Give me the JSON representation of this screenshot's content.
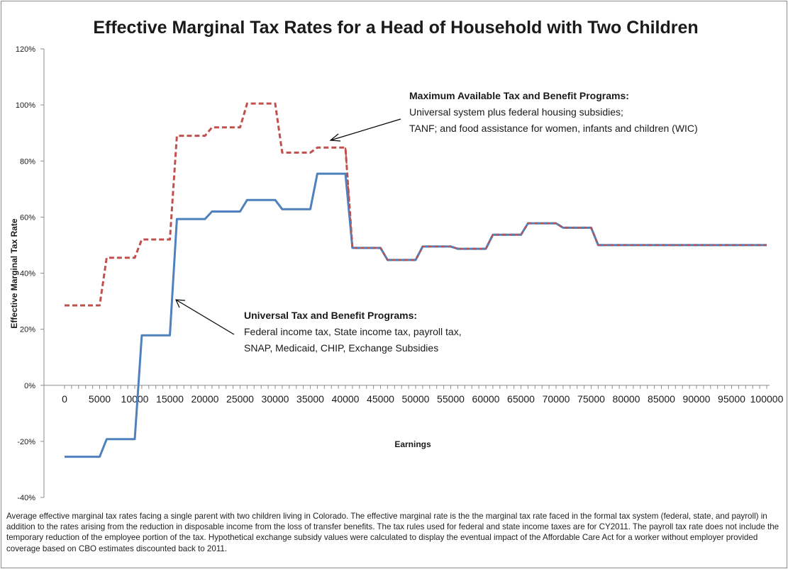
{
  "chart_data": {
    "type": "line",
    "title": "Effective Marginal Tax Rates for a Head of Household with Two Children",
    "xlabel": "Earnings",
    "ylabel": "Effective Marginal Tax Rate",
    "xlim": [
      0,
      100000
    ],
    "ylim": [
      -0.4,
      1.2
    ],
    "x_ticks": [
      "0",
      "5000",
      "10000",
      "15000",
      "20000",
      "25000",
      "30000",
      "35000",
      "40000",
      "45000",
      "50000",
      "55000",
      "60000",
      "65000",
      "70000",
      "75000",
      "80000",
      "85000",
      "90000",
      "95000",
      "100000"
    ],
    "y_ticks": [
      "-40%",
      "-20%",
      "0%",
      "20%",
      "40%",
      "60%",
      "80%",
      "100%",
      "120%"
    ],
    "y_tick_values": [
      -0.4,
      -0.2,
      0,
      0.2,
      0.4,
      0.6,
      0.8,
      1.0,
      1.2
    ],
    "grid": false,
    "series": [
      {
        "name": "Maximum Available Tax and Benefit Programs",
        "color": "#c0504d",
        "style": "dashed",
        "points": [
          [
            0,
            0.285
          ],
          [
            5000,
            0.285
          ],
          [
            6000,
            0.455
          ],
          [
            10000,
            0.455
          ],
          [
            11000,
            0.52
          ],
          [
            15000,
            0.52
          ],
          [
            16000,
            0.89
          ],
          [
            20000,
            0.89
          ],
          [
            21000,
            0.92
          ],
          [
            25000,
            0.92
          ],
          [
            26000,
            1.005
          ],
          [
            30000,
            1.005
          ],
          [
            31000,
            0.83
          ],
          [
            35000,
            0.83
          ],
          [
            36000,
            0.848
          ],
          [
            40000,
            0.848
          ],
          [
            41000,
            0.49
          ],
          [
            45000,
            0.49
          ],
          [
            46000,
            0.447
          ],
          [
            50000,
            0.447
          ],
          [
            51000,
            0.495
          ],
          [
            55000,
            0.495
          ],
          [
            56000,
            0.487
          ],
          [
            60000,
            0.487
          ],
          [
            61000,
            0.537
          ],
          [
            65000,
            0.537
          ],
          [
            66000,
            0.578
          ],
          [
            70000,
            0.578
          ],
          [
            71000,
            0.562
          ],
          [
            75000,
            0.562
          ],
          [
            76000,
            0.5
          ],
          [
            100000,
            0.5
          ]
        ]
      },
      {
        "name": "Universal Tax and Benefit Programs",
        "color": "#4f81bd",
        "style": "solid",
        "points": [
          [
            0,
            -0.255
          ],
          [
            5000,
            -0.255
          ],
          [
            6000,
            -0.192
          ],
          [
            10000,
            -0.192
          ],
          [
            11000,
            0.178
          ],
          [
            15000,
            0.178
          ],
          [
            16000,
            0.593
          ],
          [
            20000,
            0.593
          ],
          [
            21000,
            0.62
          ],
          [
            25000,
            0.62
          ],
          [
            26000,
            0.661
          ],
          [
            30000,
            0.661
          ],
          [
            31000,
            0.628
          ],
          [
            35000,
            0.628
          ],
          [
            36000,
            0.755
          ],
          [
            40000,
            0.755
          ],
          [
            41000,
            0.49
          ],
          [
            45000,
            0.49
          ],
          [
            46000,
            0.447
          ],
          [
            50000,
            0.447
          ],
          [
            51000,
            0.495
          ],
          [
            55000,
            0.495
          ],
          [
            56000,
            0.487
          ],
          [
            60000,
            0.487
          ],
          [
            61000,
            0.537
          ],
          [
            65000,
            0.537
          ],
          [
            66000,
            0.578
          ],
          [
            70000,
            0.578
          ],
          [
            71000,
            0.562
          ],
          [
            75000,
            0.562
          ],
          [
            76000,
            0.5
          ],
          [
            100000,
            0.5
          ]
        ]
      }
    ],
    "annotations": [
      {
        "title": "Maximum Available Tax and Benefit Programs:",
        "lines": [
          "Universal system plus federal housing subsidies;",
          "TANF; and food assistance for women, infants and children (WIC)"
        ]
      },
      {
        "title": "Universal Tax and Benefit Programs:",
        "lines": [
          "Federal income tax, State income tax, payroll tax,",
          "SNAP, Medicaid, CHIP, Exchange Subsidies"
        ]
      }
    ]
  },
  "caption": "Average effective marginal tax rates facing a single parent with two children living in Colorado. The effective marginal rate is the the marginal tax rate faced in the formal tax system (federal, state, and payroll) in addition to the rates arising from the reduction in disposable income from the loss of transfer benefits. The tax rules used for federal and state income taxes are for CY2011. The payroll tax rate does not include the temporary reduction of the employee portion of the tax. Hypothetical exchange subsidy values were calculated to display the eventual impact of the Affordable Care Act for a worker without employer provided coverage based on CBO estimates discounted back to 2011."
}
